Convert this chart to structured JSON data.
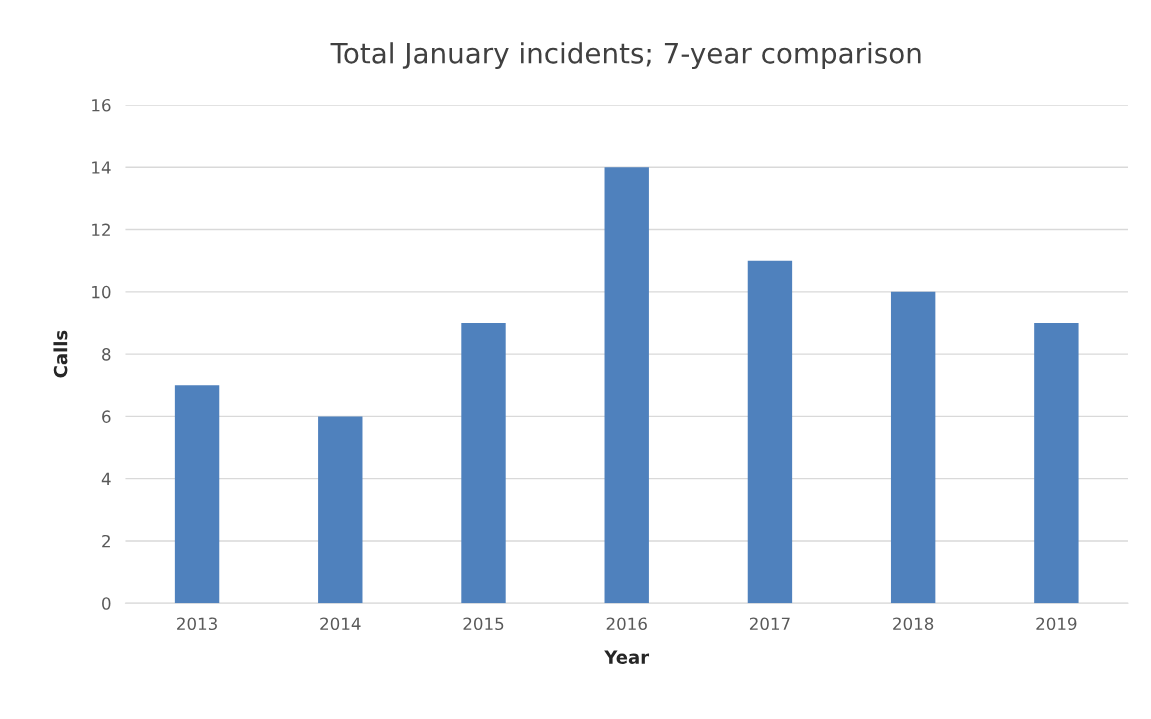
{
  "chart_data": {
    "type": "bar",
    "title": "Total January incidents; 7-year comparison",
    "xlabel": "Year",
    "ylabel": "Calls",
    "categories": [
      "2013",
      "2014",
      "2015",
      "2016",
      "2017",
      "2018",
      "2019"
    ],
    "values": [
      7,
      6,
      9,
      14,
      11,
      10,
      9
    ],
    "color": "#4f81bd",
    "ylim": [
      0,
      16
    ],
    "yticks": [
      0,
      2,
      4,
      6,
      8,
      10,
      12,
      14,
      16
    ],
    "grid": "y",
    "legend": false
  }
}
